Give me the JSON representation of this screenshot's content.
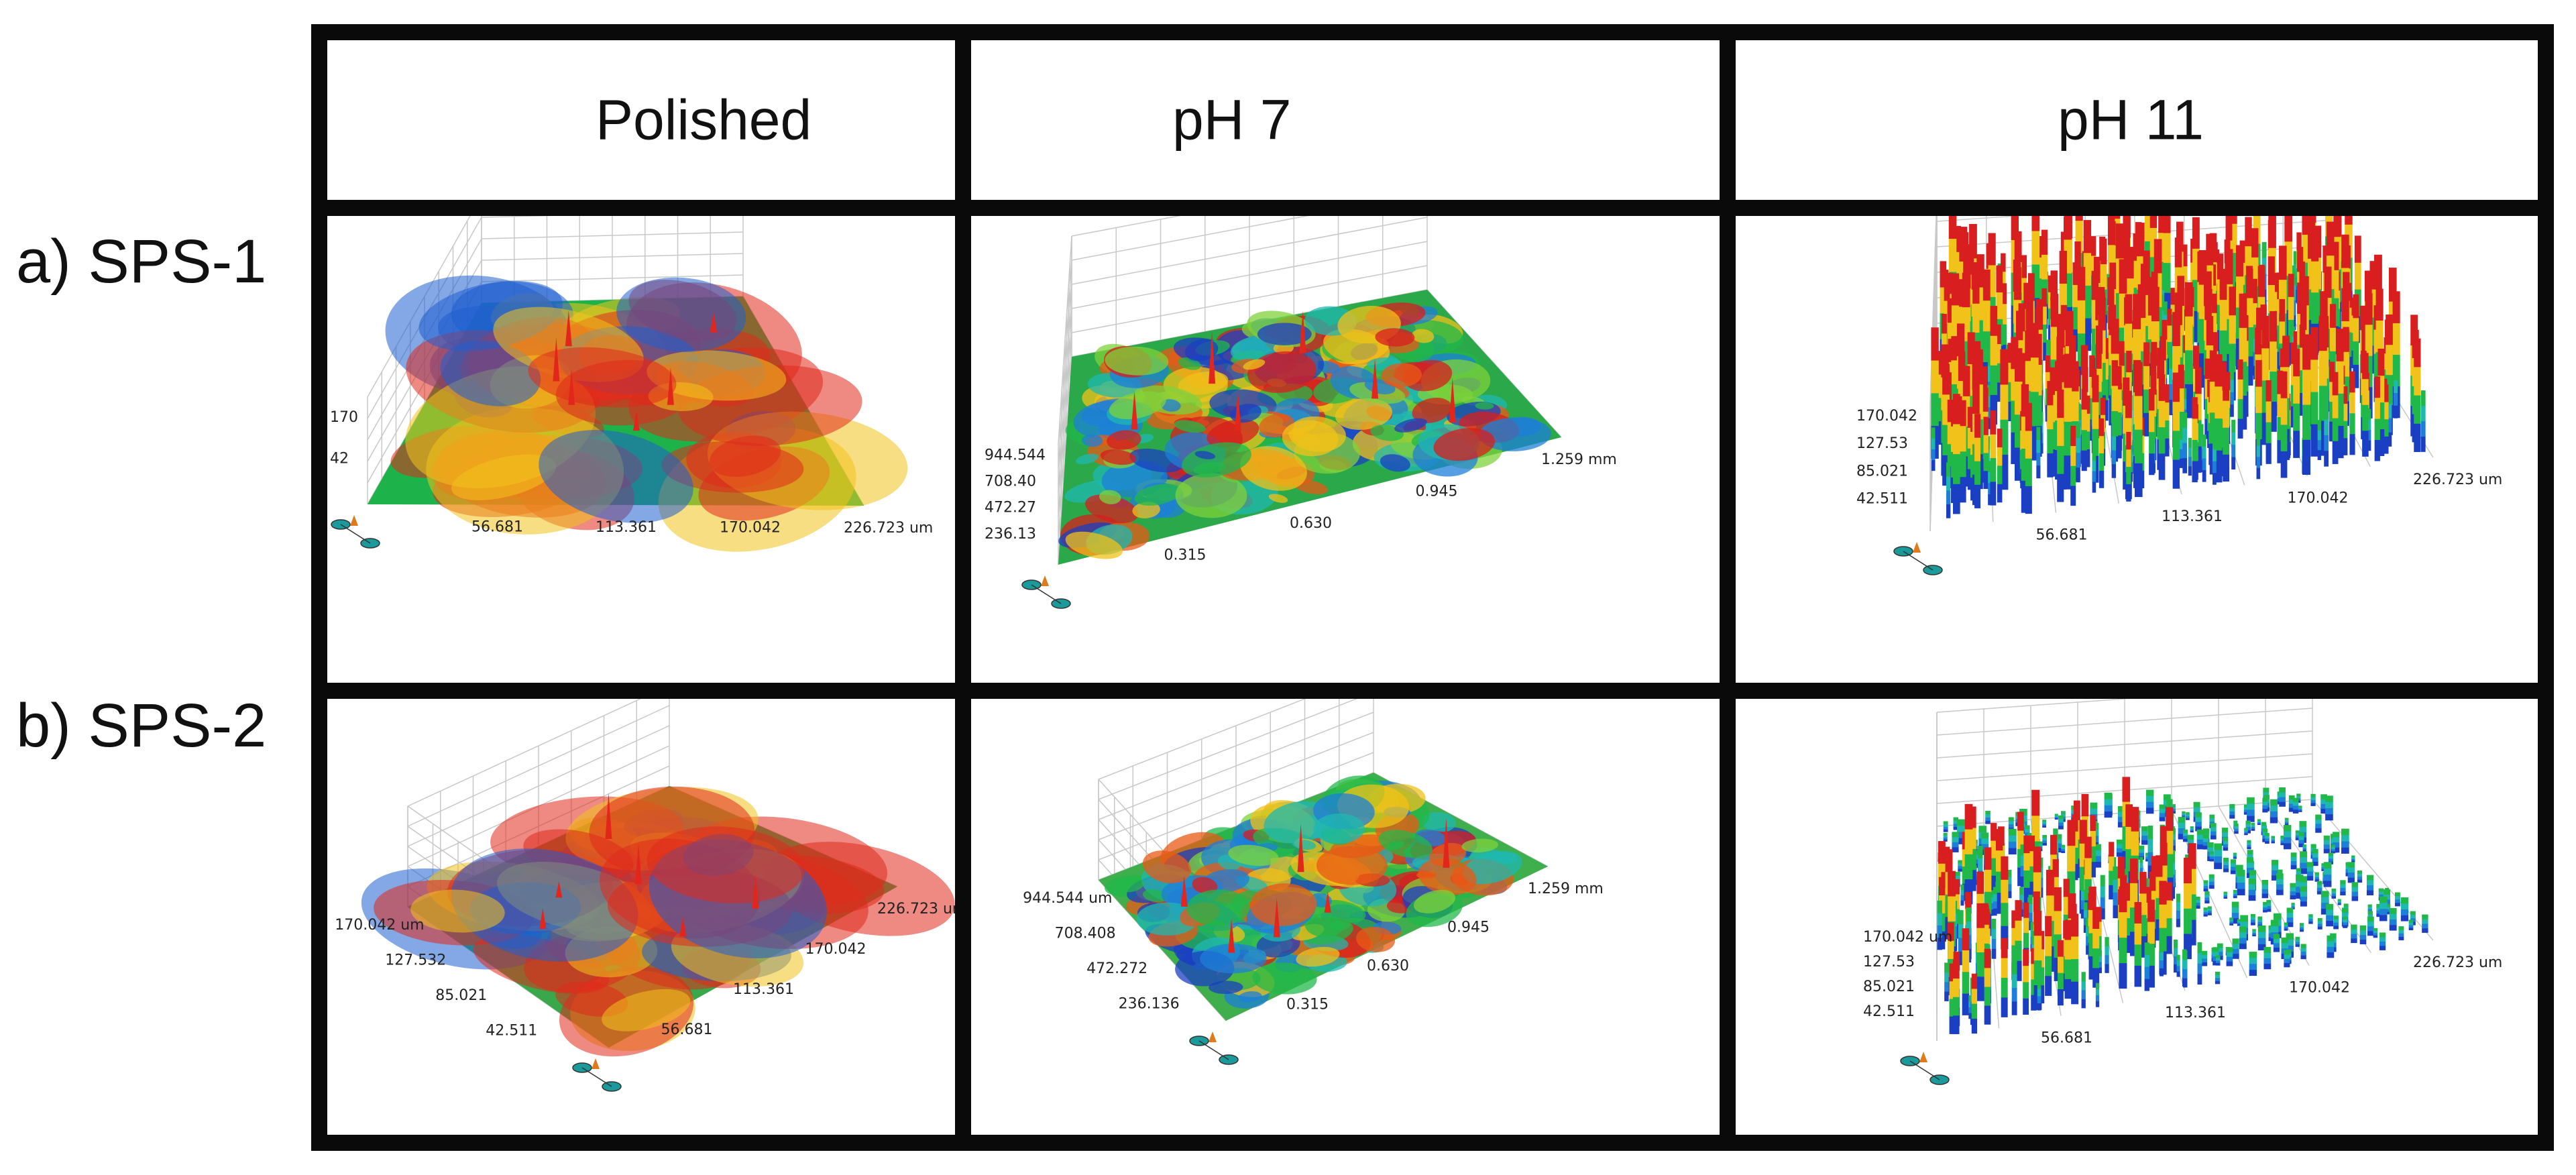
{
  "figure": {
    "columns": [
      "Polished",
      "pH 7",
      "pH 11"
    ],
    "rows": [
      "a) SPS-1",
      "b) SPS-2"
    ]
  },
  "panels": [
    {
      "row": 0,
      "col": 0,
      "texture": "smooth",
      "z_ticks": [
        "170",
        "42"
      ],
      "x_ticks": [
        "56.681",
        "113.361",
        "170.042",
        "226.723 um"
      ],
      "y_ticks": []
    },
    {
      "row": 0,
      "col": 1,
      "texture": "rough",
      "z_ticks": [
        "944.544",
        "708.40",
        "472.27",
        "236.13"
      ],
      "x_ticks": [
        "0.315",
        "0.630",
        "0.945",
        "1.259 mm"
      ],
      "y_ticks": []
    },
    {
      "row": 0,
      "col": 2,
      "texture": "spiky",
      "z_ticks": [
        "170.042",
        "127.53",
        "85.021",
        "42.511"
      ],
      "x_ticks": [
        "56.681",
        "113.361",
        "170.042",
        "226.723 um"
      ],
      "y_ticks": []
    },
    {
      "row": 1,
      "col": 0,
      "texture": "smooth",
      "z_ticks": [],
      "x_ticks": [
        "56.681",
        "113.361",
        "170.042",
        "226.723 um"
      ],
      "y_ticks": [
        "170.042 um",
        "127.532",
        "85.021",
        "42.511"
      ]
    },
    {
      "row": 1,
      "col": 1,
      "texture": "rough",
      "z_ticks": [],
      "x_ticks": [
        "0.315",
        "0.630",
        "0.945",
        "1.259 mm"
      ],
      "y_ticks": [
        "944.544 um",
        "708.408",
        "472.272",
        "236.136"
      ]
    },
    {
      "row": 1,
      "col": 2,
      "texture": "sparse",
      "z_ticks": [
        "170.042 um",
        "127.53",
        "85.021",
        "42.511"
      ],
      "x_ticks": [
        "56.681",
        "113.361",
        "170.042",
        "226.723 um"
      ],
      "y_ticks": []
    }
  ]
}
